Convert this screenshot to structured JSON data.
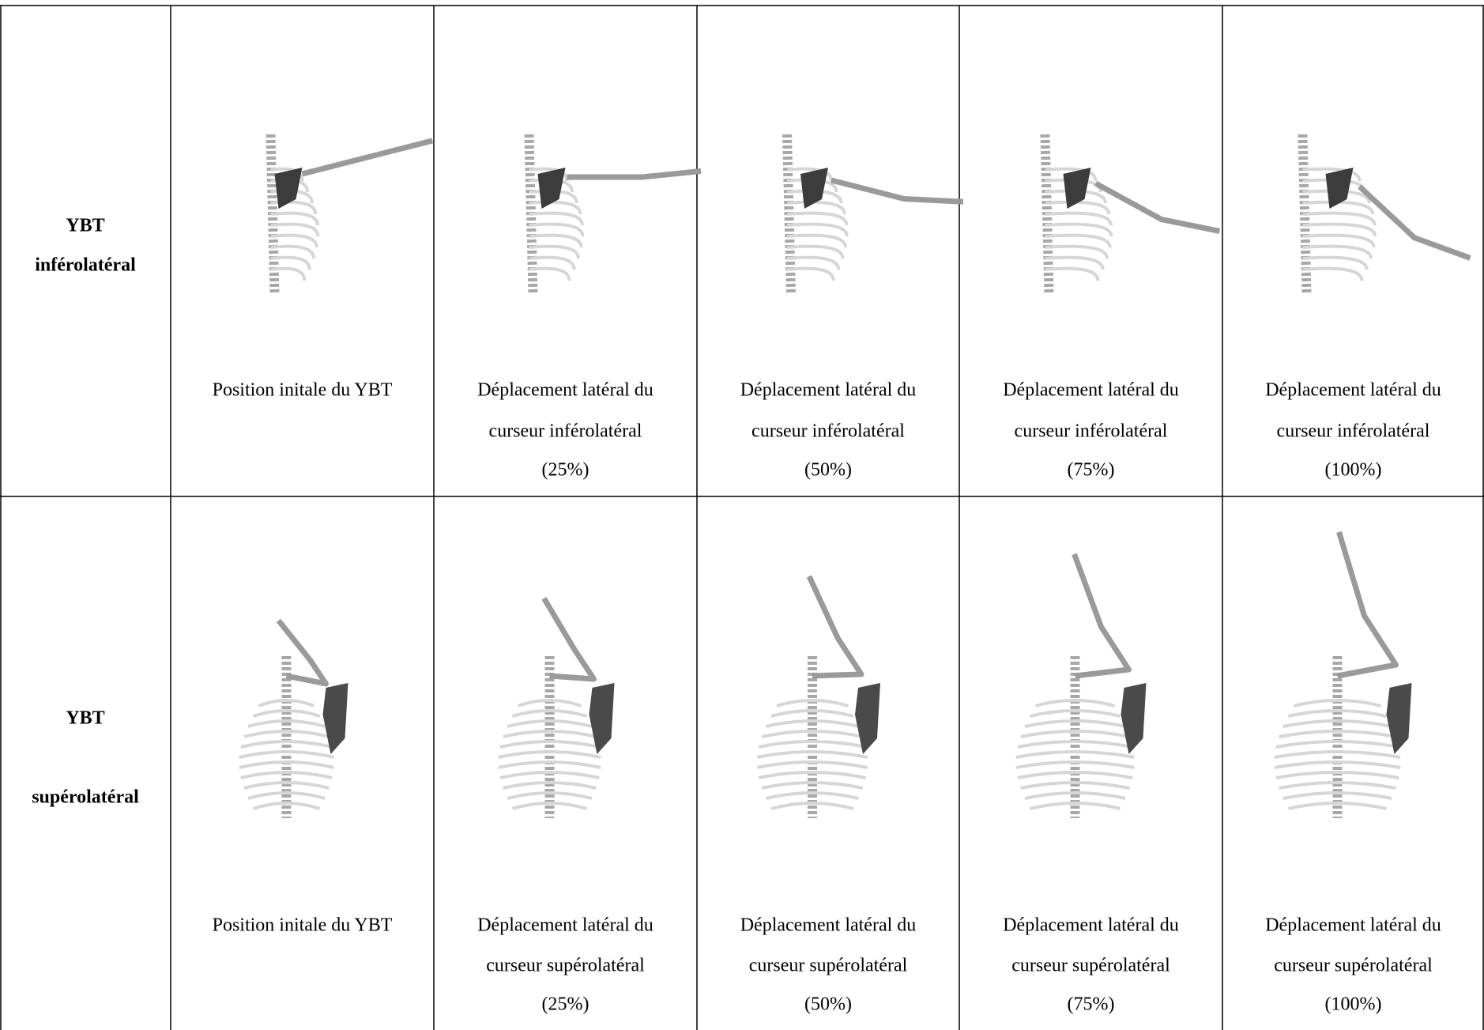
{
  "rows": [
    {
      "header": [
        "YBT",
        "inférolatéral"
      ],
      "cells": [
        {
          "caption": [
            "Position initale du YBT"
          ]
        },
        {
          "caption": [
            "Déplacement latéral du",
            "curseur inférolatéral",
            "(25%)"
          ]
        },
        {
          "caption": [
            "Déplacement latéral du",
            "curseur inférolatéral",
            "(50%)"
          ]
        },
        {
          "caption": [
            "Déplacement latéral du",
            "curseur inférolatéral",
            "(75%)"
          ]
        },
        {
          "caption": [
            "Déplacement latéral du",
            "curseur inférolatéral",
            "(100%)"
          ]
        }
      ]
    },
    {
      "header": [
        "YBT",
        "supérolatéral"
      ],
      "cells": [
        {
          "caption": [
            "Position initale du YBT"
          ]
        },
        {
          "caption": [
            "Déplacement latéral du",
            "curseur supérolatéral",
            "(25%)"
          ]
        },
        {
          "caption": [
            "Déplacement latéral du",
            "curseur supérolatéral",
            "(50%)"
          ]
        },
        {
          "caption": [
            "Déplacement latéral du",
            "curseur supérolatéral",
            "(75%)"
          ]
        },
        {
          "caption": [
            "Déplacement latéral du",
            "curseur supérolatéral",
            "(100%)"
          ]
        }
      ]
    }
  ]
}
